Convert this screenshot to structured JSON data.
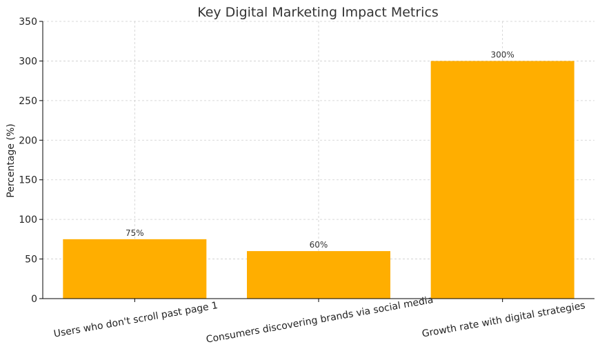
{
  "chart_data": {
    "type": "bar",
    "title": "Key Digital Marketing Impact Metrics",
    "xlabel": "",
    "ylabel": "Percentage (%)",
    "categories": [
      "Users who don't scroll past page 1",
      "Consumers discovering brands via social media",
      "Growth rate with digital strategies"
    ],
    "values": [
      75,
      60,
      300
    ],
    "data_labels": [
      "75%",
      "60%",
      "300%"
    ],
    "ylim": [
      0,
      350
    ],
    "yticks": [
      "0",
      "50",
      "100",
      "150",
      "200",
      "250",
      "300",
      "350"
    ],
    "grid": true,
    "bar_color": "#FFAE00"
  }
}
